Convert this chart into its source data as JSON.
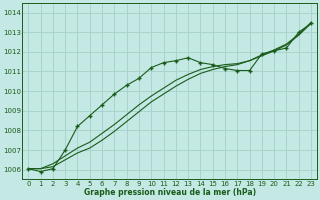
{
  "title": "Graphe pression niveau de la mer (hPa)",
  "background_color": "#c4e8e4",
  "grid_color": "#a8d4cc",
  "line_color": "#1a5c1a",
  "xlim": [
    -0.5,
    23.5
  ],
  "ylim": [
    1005.5,
    1014.5
  ],
  "yticks": [
    1006,
    1007,
    1008,
    1009,
    1010,
    1011,
    1012,
    1013,
    1014
  ],
  "xticks": [
    0,
    1,
    2,
    3,
    4,
    5,
    6,
    7,
    8,
    9,
    10,
    11,
    12,
    13,
    14,
    15,
    16,
    17,
    18,
    19,
    20,
    21,
    22,
    23
  ],
  "main_x": [
    0,
    1,
    2,
    3,
    4,
    5,
    6,
    7,
    8,
    9,
    10,
    11,
    12,
    13,
    14,
    15,
    16,
    17,
    18,
    19,
    20,
    21,
    22,
    23
  ],
  "main_y": [
    1006.05,
    1005.9,
    1006.05,
    1007.0,
    1008.2,
    1008.75,
    1009.3,
    1009.85,
    1010.3,
    1010.65,
    1011.2,
    1011.45,
    1011.55,
    1011.7,
    1011.45,
    1011.35,
    1011.15,
    1011.05,
    1011.05,
    1011.9,
    1012.05,
    1012.2,
    1013.0,
    1013.45
  ],
  "line1_x": [
    0,
    1,
    2,
    3,
    4,
    5,
    6,
    7,
    8,
    9,
    10,
    11,
    12,
    13,
    14,
    15,
    16,
    17,
    18,
    19,
    20,
    21,
    22,
    23
  ],
  "line1_y": [
    1006.05,
    1006.05,
    1006.3,
    1006.7,
    1007.1,
    1007.4,
    1007.85,
    1008.3,
    1008.8,
    1009.3,
    1009.75,
    1010.15,
    1010.55,
    1010.85,
    1011.1,
    1011.25,
    1011.35,
    1011.4,
    1011.55,
    1011.8,
    1012.05,
    1012.35,
    1012.85,
    1013.45
  ],
  "line2_x": [
    0,
    1,
    2,
    3,
    4,
    5,
    6,
    7,
    8,
    9,
    10,
    11,
    12,
    13,
    14,
    15,
    16,
    17,
    18,
    19,
    20,
    21,
    22,
    23
  ],
  "line2_y": [
    1006.05,
    1006.05,
    1006.15,
    1006.5,
    1006.85,
    1007.1,
    1007.5,
    1007.95,
    1008.45,
    1008.95,
    1009.45,
    1009.85,
    1010.25,
    1010.6,
    1010.9,
    1011.1,
    1011.25,
    1011.35,
    1011.55,
    1011.85,
    1012.1,
    1012.4,
    1012.9,
    1013.5
  ]
}
